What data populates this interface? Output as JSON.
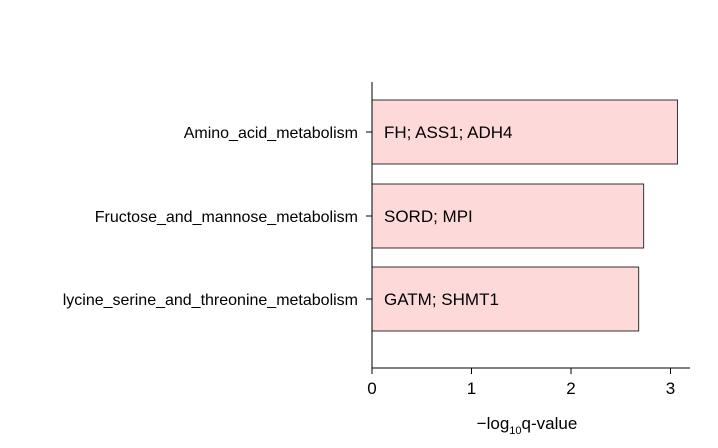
{
  "chart_data": {
    "type": "bar",
    "orientation": "horizontal",
    "categories": [
      "Amino_acid_metabolism",
      "Fructose_and_mannose_metabolism",
      "lycine_serine_and_threonine_metabolism"
    ],
    "values": [
      3.07,
      2.73,
      2.68
    ],
    "bar_labels": [
      "FH; ASS1; ADH4",
      "SORD; MPI",
      "GATM; SHMT1"
    ],
    "x_ticks": [
      0,
      1,
      2,
      3
    ],
    "xlim": [
      0,
      3.18
    ],
    "xlabel_prefix": "−log",
    "xlabel_subscript": "10",
    "xlabel_suffix": "q-value",
    "colors": {
      "bar_fill": "#fdd9d9",
      "bar_stroke": "#333333",
      "axis": "#000000"
    }
  }
}
